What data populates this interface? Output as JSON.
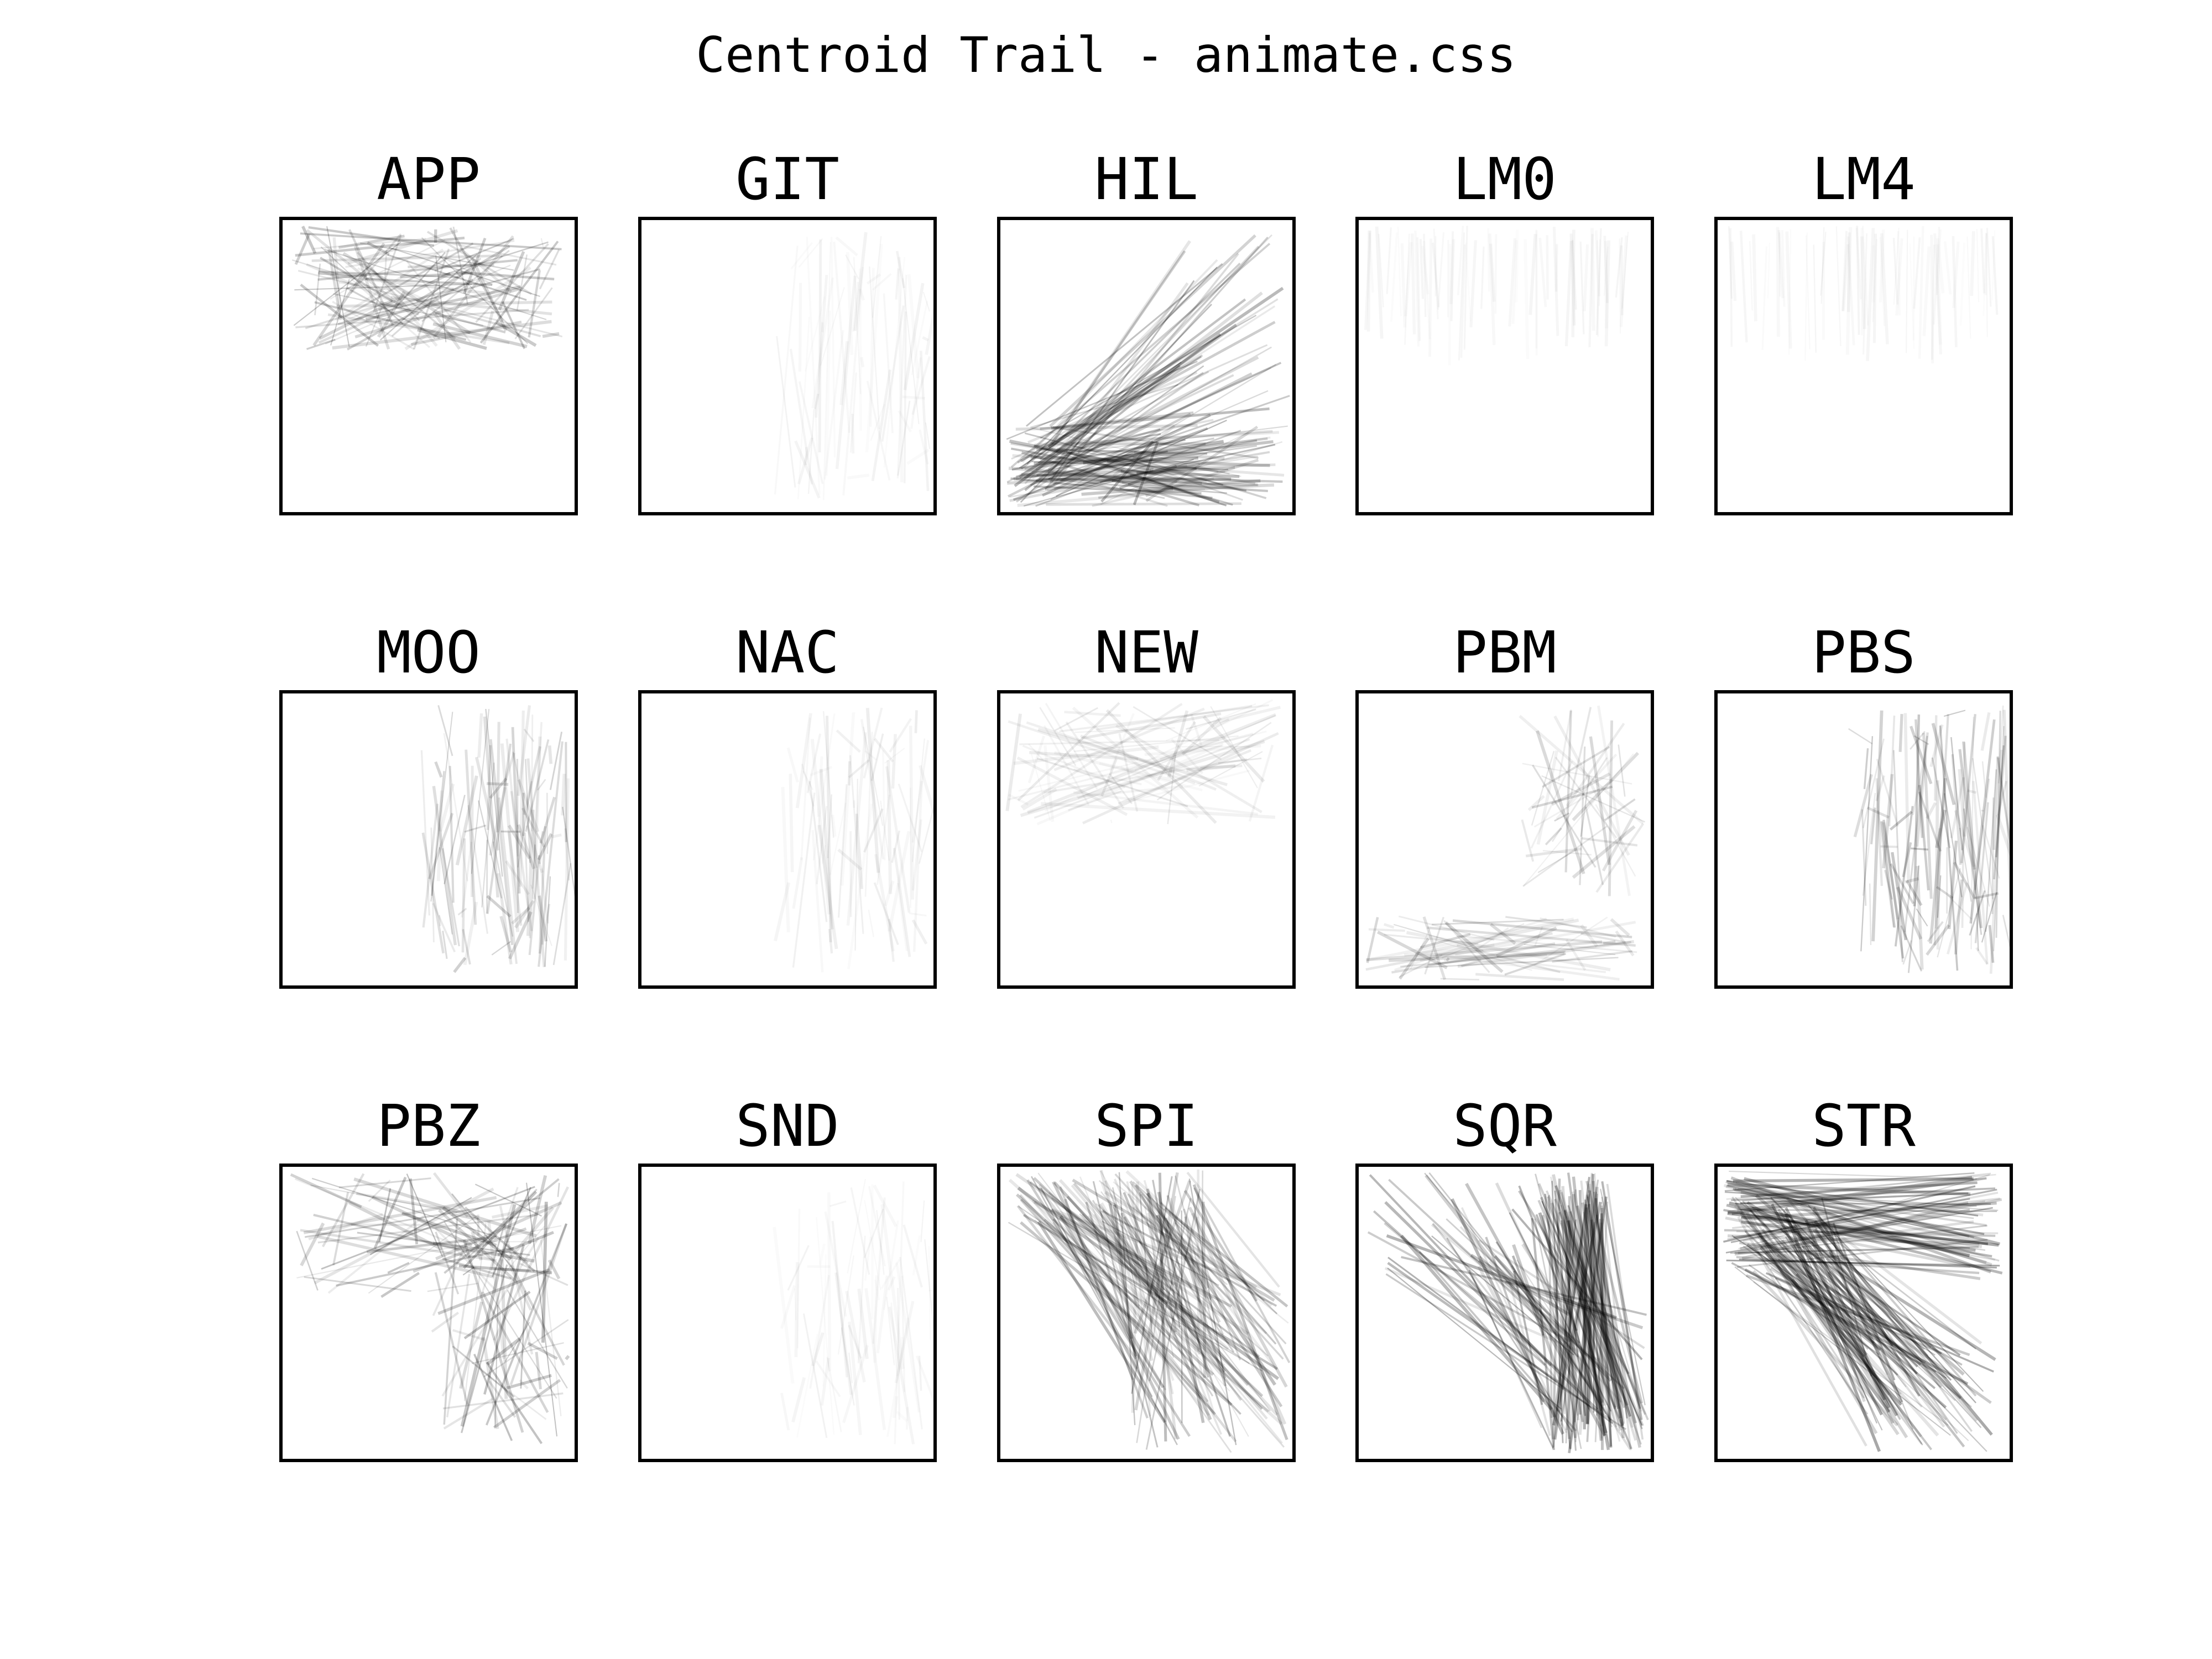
{
  "chart_data": {
    "type": "line",
    "title": "Centroid Trail - animate.css",
    "grid": false,
    "xlim": [
      0,
      1
    ],
    "ylim": [
      0,
      1
    ],
    "line_color": "#000000",
    "panels": [
      {
        "label": "APP",
        "region": "top",
        "intensity": 0.22
      },
      {
        "label": "GIT",
        "region": "right-vertical",
        "intensity": 0.05
      },
      {
        "label": "HIL",
        "region": "bottom-fan",
        "intensity": 0.28
      },
      {
        "label": "LM0",
        "region": "top-sparse",
        "intensity": 0.04
      },
      {
        "label": "LM4",
        "region": "top-sparse",
        "intensity": 0.04
      },
      {
        "label": "MOO",
        "region": "right-vertical",
        "intensity": 0.18
      },
      {
        "label": "NAC",
        "region": "right-vertical",
        "intensity": 0.07
      },
      {
        "label": "NEW",
        "region": "top",
        "intensity": 0.09
      },
      {
        "label": "PBM",
        "region": "bottom-right",
        "intensity": 0.16
      },
      {
        "label": "PBS",
        "region": "right-vertical",
        "intensity": 0.22
      },
      {
        "label": "PBZ",
        "region": "full",
        "intensity": 0.25
      },
      {
        "label": "SND",
        "region": "right-vertical",
        "intensity": 0.05
      },
      {
        "label": "SPI",
        "region": "diag-down",
        "intensity": 0.26
      },
      {
        "label": "SQR",
        "region": "steep-right",
        "intensity": 0.32
      },
      {
        "label": "STR",
        "region": "top-horizontal-diag",
        "intensity": 0.34
      }
    ]
  }
}
